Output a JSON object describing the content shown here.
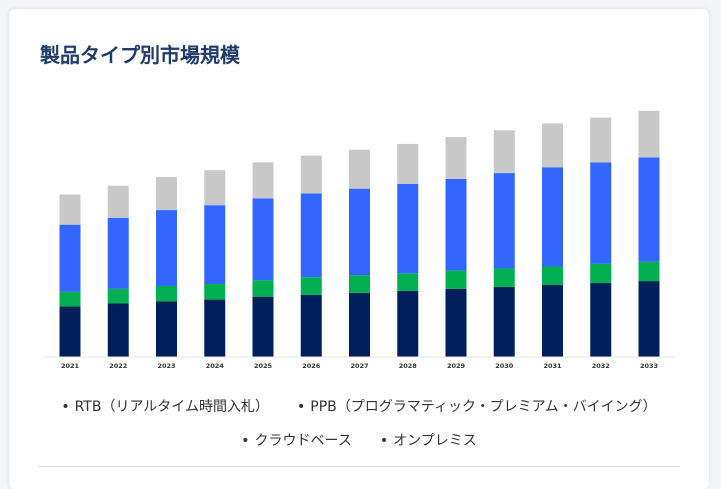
{
  "page": {
    "title": "製品タイプ別市場規模"
  },
  "chart_data": {
    "type": "bar",
    "stacked": true,
    "categories": [
      "2021",
      "2022",
      "2023",
      "2024",
      "2025",
      "2026",
      "2027",
      "2028",
      "2029",
      "2030",
      "2031",
      "2032",
      "2033"
    ],
    "series": [
      {
        "name": "RTB（リアルタイム時間入札）",
        "color": "#00205b",
        "values": [
          52,
          55,
          57,
          59,
          62,
          64,
          66,
          68,
          70,
          72,
          74,
          76,
          78
        ]
      },
      {
        "name": "PPB（プログラマティック・プレミアム・バイイング）",
        "color": "#00b050",
        "values": [
          15,
          15,
          16,
          16,
          17,
          18,
          18,
          18,
          19,
          19,
          19,
          20,
          20
        ]
      },
      {
        "name": "クラウドベース",
        "color": "#3366ff",
        "values": [
          69,
          73,
          78,
          81,
          84,
          86,
          89,
          92,
          94,
          98,
          102,
          104,
          107
        ]
      },
      {
        "name": "オンプレミス",
        "color": "#c8c8c8",
        "values": [
          31,
          33,
          34,
          36,
          37,
          39,
          40,
          41,
          43,
          44,
          45,
          46,
          48
        ]
      }
    ],
    "ylim": [
      0,
      260
    ],
    "grid": false,
    "legend_position": "bottom"
  }
}
